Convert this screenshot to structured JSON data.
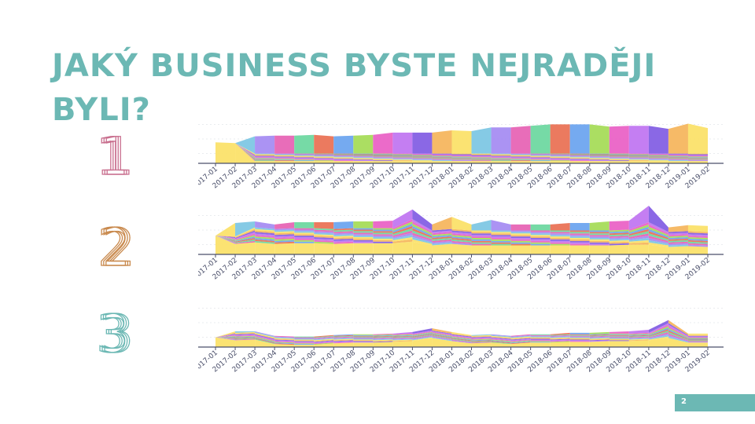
{
  "slide": {
    "title": "JAKÝ BUSINESS BYSTE NEJRADĚJI BYLI?",
    "page_number": "2",
    "accent_color": "#6cb8b4"
  },
  "ranks": [
    {
      "label": "1",
      "color": "#c9708f"
    },
    {
      "label": "2",
      "color": "#c98a4e"
    },
    {
      "label": "3",
      "color": "#6cb8b4"
    }
  ],
  "palette": [
    "#7ec7e4",
    "#a78df2",
    "#e765b5",
    "#6fd8a1",
    "#ea7356",
    "#6ea5ef",
    "#a6dc5a",
    "#ea63c6",
    "#c177f1",
    "#8460e4",
    "#f6b65f",
    "#fbe16a"
  ],
  "chart_data": [
    {
      "type": "area",
      "stacked": true,
      "x": [
        "2017-01",
        "2017-02",
        "2017-03",
        "2017-04",
        "2017-05",
        "2017-06",
        "2017-07",
        "2017-08",
        "2017-09",
        "2017-10",
        "2017-11",
        "2017-12",
        "2018-01",
        "2018-02",
        "2018-03",
        "2018-04",
        "2018-05",
        "2018-06",
        "2018-07",
        "2018-08",
        "2018-09",
        "2018-10",
        "2018-11",
        "2018-12",
        "2019-01",
        "2019-02"
      ],
      "series": [
        {
          "values": [
            28,
            27,
            3,
            3,
            3,
            3,
            3,
            3,
            3,
            3,
            3,
            3,
            3,
            3,
            3,
            3,
            3,
            3,
            3,
            3,
            3,
            3,
            3,
            3,
            3,
            3
          ]
        },
        {
          "values": [
            0,
            0,
            1,
            1,
            1,
            1,
            1,
            1,
            1,
            1,
            1,
            1,
            1,
            1,
            1,
            1,
            1,
            1,
            1,
            1,
            1,
            1,
            1,
            1,
            1,
            1
          ]
        },
        {
          "values": [
            0,
            0,
            1,
            1,
            1,
            1,
            1,
            1,
            1,
            1,
            1,
            1,
            1,
            1,
            1,
            1,
            1,
            1,
            1,
            1,
            1,
            1,
            1,
            1,
            1,
            1
          ]
        },
        {
          "values": [
            0,
            0,
            1,
            1,
            1,
            1,
            1,
            1,
            1,
            1,
            1,
            1,
            1,
            1,
            1,
            1,
            1,
            1,
            1,
            1,
            1,
            1,
            1,
            1,
            1,
            1
          ]
        },
        {
          "values": [
            0,
            0,
            1,
            1,
            1,
            1,
            1,
            1,
            1,
            1,
            1,
            1,
            1,
            1,
            1,
            1,
            1,
            1,
            1,
            1,
            1,
            1,
            1,
            1,
            1,
            1
          ]
        },
        {
          "values": [
            0,
            0,
            1,
            1,
            1,
            1,
            1,
            1,
            1,
            1,
            1,
            1,
            1,
            1,
            1,
            1,
            1,
            1,
            1,
            1,
            1,
            1,
            1,
            1,
            1,
            1
          ]
        },
        {
          "values": [
            0,
            0,
            1,
            1,
            1,
            1,
            1,
            1,
            1,
            1,
            1,
            1,
            1,
            1,
            1,
            1,
            1,
            1,
            1,
            1,
            1,
            1,
            1,
            1,
            1,
            1
          ]
        },
        {
          "values": [
            0,
            0,
            1,
            1,
            1,
            1,
            1,
            1,
            1,
            1,
            1,
            1,
            1,
            1,
            1,
            1,
            1,
            1,
            1,
            1,
            1,
            1,
            1,
            1,
            1,
            1
          ]
        },
        {
          "values": [
            0,
            0,
            1,
            1,
            1,
            1,
            1,
            1,
            1,
            1,
            1,
            1,
            1,
            1,
            1,
            1,
            1,
            1,
            1,
            1,
            1,
            1,
            1,
            1,
            1,
            1
          ]
        },
        {
          "values": [
            0,
            0,
            1,
            1,
            1,
            1,
            1,
            1,
            1,
            1,
            1,
            1,
            1,
            1,
            1,
            1,
            1,
            1,
            1,
            1,
            1,
            1,
            1,
            1,
            1,
            1
          ]
        },
        {
          "values": [
            0,
            0,
            1,
            1,
            1,
            1,
            1,
            1,
            1,
            1,
            1,
            1,
            1,
            1,
            1,
            1,
            1,
            1,
            1,
            1,
            1,
            1,
            1,
            1,
            1,
            1
          ]
        },
        {
          "values": [
            0,
            0,
            23,
            24,
            24,
            25,
            23,
            24,
            25,
            28,
            28,
            28,
            31,
            30,
            35,
            35,
            37,
            39,
            39,
            39,
            36,
            37,
            37,
            33,
            40,
            34
          ]
        }
      ],
      "ylim": [
        0,
        65
      ]
    },
    {
      "type": "area",
      "stacked": true,
      "x": [
        "2017-01",
        "2017-02",
        "2017-03",
        "2017-04",
        "2017-05",
        "2017-06",
        "2017-07",
        "2017-08",
        "2017-09",
        "2017-10",
        "2017-11",
        "2017-12",
        "2018-01",
        "2018-02",
        "2018-03",
        "2018-04",
        "2018-05",
        "2018-06",
        "2018-07",
        "2018-08",
        "2018-09",
        "2018-10",
        "2018-11",
        "2018-12",
        "2019-01",
        "2019-02"
      ],
      "series": [
        {
          "values": [
            25,
            14,
            16,
            14,
            15,
            15,
            14,
            15,
            15,
            15,
            17,
            12,
            14,
            12,
            12,
            12,
            12,
            12,
            12,
            12,
            12,
            13,
            13,
            10,
            11,
            10
          ]
        },
        {
          "values": [
            0,
            1,
            2,
            2,
            2,
            2,
            2,
            2,
            2,
            2,
            3,
            2,
            2,
            2,
            2,
            2,
            2,
            2,
            2,
            2,
            2,
            2,
            3,
            2,
            2,
            2
          ]
        },
        {
          "values": [
            0,
            1,
            2,
            2,
            2,
            2,
            2,
            2,
            2,
            2,
            3,
            2,
            2,
            2,
            2,
            2,
            2,
            2,
            2,
            2,
            2,
            2,
            3,
            2,
            2,
            2
          ]
        },
        {
          "values": [
            0,
            1,
            2,
            2,
            2,
            2,
            2,
            2,
            2,
            2,
            3,
            2,
            2,
            2,
            2,
            2,
            2,
            2,
            2,
            2,
            2,
            2,
            3,
            2,
            2,
            2
          ]
        },
        {
          "values": [
            0,
            1,
            2,
            2,
            2,
            2,
            2,
            2,
            2,
            2,
            3,
            2,
            2,
            2,
            2,
            2,
            2,
            2,
            2,
            2,
            2,
            2,
            3,
            2,
            2,
            2
          ]
        },
        {
          "values": [
            0,
            1,
            2,
            2,
            2,
            2,
            2,
            2,
            2,
            2,
            3,
            2,
            2,
            2,
            2,
            2,
            2,
            2,
            2,
            2,
            2,
            2,
            3,
            2,
            2,
            2
          ]
        },
        {
          "values": [
            0,
            1,
            2,
            2,
            2,
            2,
            2,
            2,
            2,
            2,
            3,
            2,
            2,
            2,
            2,
            2,
            2,
            2,
            2,
            2,
            2,
            2,
            3,
            2,
            2,
            2
          ]
        },
        {
          "values": [
            0,
            1,
            2,
            2,
            2,
            2,
            2,
            2,
            2,
            2,
            3,
            2,
            2,
            2,
            2,
            2,
            2,
            2,
            2,
            2,
            2,
            2,
            3,
            2,
            2,
            2
          ]
        },
        {
          "values": [
            0,
            1,
            2,
            2,
            2,
            2,
            2,
            2,
            2,
            2,
            3,
            2,
            2,
            2,
            2,
            2,
            2,
            2,
            2,
            2,
            2,
            2,
            3,
            2,
            2,
            2
          ]
        },
        {
          "values": [
            0,
            1,
            2,
            2,
            2,
            2,
            2,
            2,
            2,
            2,
            3,
            2,
            2,
            2,
            2,
            2,
            2,
            2,
            2,
            2,
            2,
            2,
            3,
            2,
            2,
            2
          ]
        },
        {
          "values": [
            0,
            1,
            2,
            2,
            2,
            2,
            2,
            2,
            2,
            2,
            3,
            2,
            2,
            2,
            2,
            2,
            2,
            2,
            2,
            2,
            2,
            2,
            3,
            2,
            2,
            2
          ]
        },
        {
          "values": [
            0,
            18,
            8,
            6,
            8,
            8,
            9,
            9,
            9,
            10,
            13,
            8,
            16,
            8,
            14,
            8,
            8,
            8,
            10,
            10,
            12,
            12,
            22,
            6,
            8,
            8
          ]
        }
      ],
      "ylim": [
        0,
        65
      ]
    },
    {
      "type": "area",
      "stacked": true,
      "x": [
        "2017-01",
        "2017-02",
        "2017-03",
        "2017-04",
        "2017-05",
        "2017-06",
        "2017-07",
        "2017-08",
        "2017-09",
        "2017-10",
        "2017-11",
        "2017-12",
        "2018-01",
        "2018-02",
        "2018-03",
        "2018-04",
        "2018-05",
        "2018-06",
        "2018-07",
        "2018-08",
        "2018-09",
        "2018-10",
        "2018-11",
        "2018-12",
        "2019-01",
        "2019-02"
      ],
      "series": [
        {
          "values": [
            13,
            9,
            10,
            4,
            3,
            3,
            5,
            6,
            6,
            7,
            8,
            12,
            8,
            5,
            6,
            4,
            6,
            6,
            7,
            7,
            8,
            8,
            9,
            12,
            6,
            6
          ]
        },
        {
          "values": [
            0,
            1,
            1,
            1,
            1,
            1,
            1,
            1,
            1,
            1,
            1,
            1,
            1,
            1,
            1,
            1,
            1,
            1,
            1,
            1,
            1,
            1,
            1,
            2,
            1,
            1
          ]
        },
        {
          "values": [
            0,
            1,
            1,
            1,
            1,
            1,
            1,
            1,
            1,
            1,
            1,
            1,
            1,
            1,
            1,
            1,
            1,
            1,
            1,
            1,
            1,
            1,
            1,
            2,
            1,
            1
          ]
        },
        {
          "values": [
            0,
            1,
            1,
            1,
            1,
            1,
            1,
            1,
            1,
            1,
            1,
            1,
            1,
            1,
            1,
            1,
            1,
            1,
            1,
            1,
            1,
            1,
            1,
            2,
            1,
            1
          ]
        },
        {
          "values": [
            0,
            1,
            1,
            1,
            1,
            1,
            1,
            1,
            1,
            1,
            1,
            1,
            1,
            1,
            1,
            1,
            1,
            1,
            1,
            1,
            1,
            1,
            1,
            2,
            1,
            1
          ]
        },
        {
          "values": [
            0,
            1,
            1,
            1,
            1,
            1,
            1,
            1,
            1,
            1,
            1,
            1,
            1,
            1,
            1,
            1,
            1,
            1,
            1,
            1,
            1,
            1,
            1,
            2,
            1,
            1
          ]
        },
        {
          "values": [
            0,
            1,
            1,
            1,
            1,
            1,
            1,
            1,
            1,
            1,
            1,
            1,
            1,
            1,
            1,
            1,
            1,
            1,
            1,
            1,
            1,
            1,
            1,
            2,
            1,
            1
          ]
        },
        {
          "values": [
            0,
            1,
            1,
            1,
            1,
            1,
            1,
            1,
            1,
            1,
            1,
            1,
            1,
            1,
            1,
            1,
            1,
            1,
            1,
            1,
            1,
            1,
            1,
            2,
            1,
            1
          ]
        },
        {
          "values": [
            0,
            1,
            1,
            1,
            1,
            1,
            1,
            1,
            1,
            1,
            1,
            1,
            1,
            1,
            1,
            1,
            1,
            1,
            1,
            1,
            1,
            1,
            1,
            2,
            1,
            1
          ]
        },
        {
          "values": [
            0,
            1,
            1,
            1,
            1,
            1,
            1,
            1,
            1,
            1,
            1,
            1,
            1,
            1,
            1,
            1,
            1,
            1,
            1,
            1,
            1,
            1,
            1,
            2,
            1,
            1
          ]
        },
        {
          "values": [
            0,
            1,
            1,
            1,
            1,
            1,
            1,
            1,
            1,
            1,
            1,
            1,
            1,
            1,
            1,
            1,
            1,
            1,
            1,
            1,
            1,
            1,
            1,
            2,
            1,
            1
          ]
        },
        {
          "values": [
            0,
            2,
            1,
            1,
            1,
            1,
            1,
            1,
            1,
            1,
            2,
            3,
            2,
            1,
            1,
            1,
            1,
            1,
            2,
            2,
            2,
            3,
            4,
            4,
            2,
            2
          ]
        }
      ],
      "ylim": [
        0,
        65
      ]
    }
  ]
}
